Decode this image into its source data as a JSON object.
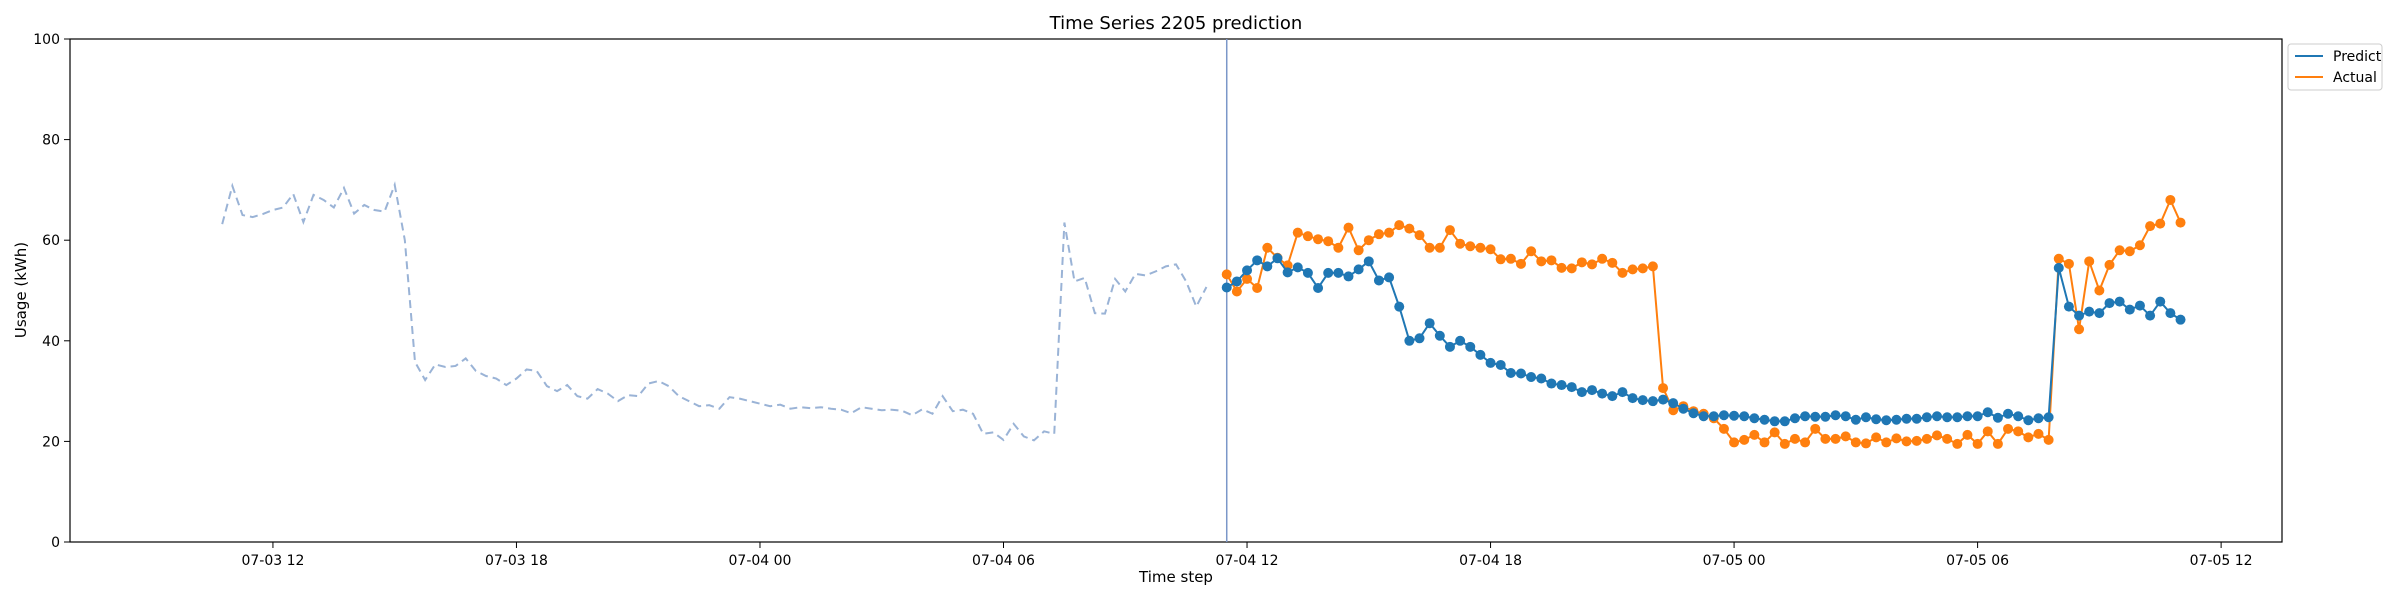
{
  "chart_data": {
    "type": "line",
    "title": "Time Series 2205 prediction",
    "xlabel": "Time step",
    "ylabel": "Usage (kWh)",
    "ylim": [
      0,
      100
    ],
    "yticks": [
      0,
      20,
      40,
      60,
      80,
      100
    ],
    "x_axis": {
      "kind": "datetime",
      "start": "2024-07-03 07:00",
      "end": "2024-07-05 13:30",
      "ticks": [
        {
          "t": "2024-07-03 12:00",
          "label": "07-03 12"
        },
        {
          "t": "2024-07-03 18:00",
          "label": "07-03 18"
        },
        {
          "t": "2024-07-04 00:00",
          "label": "07-04 00"
        },
        {
          "t": "2024-07-04 06:00",
          "label": "07-04 06"
        },
        {
          "t": "2024-07-04 12:00",
          "label": "07-04 12"
        },
        {
          "t": "2024-07-04 18:00",
          "label": "07-04 18"
        },
        {
          "t": "2024-07-05 00:00",
          "label": "07-05 00"
        },
        {
          "t": "2024-07-05 06:00",
          "label": "07-05 06"
        },
        {
          "t": "2024-07-05 12:00",
          "label": "07-05 12"
        }
      ]
    },
    "split_line_time": "2024-07-04 11:30",
    "history_series": {
      "start": "2024-07-03 10:45",
      "interval_minutes": 15,
      "color": "#9ab3d6",
      "values": [
        63.2,
        70.8,
        65,
        64.6,
        65.2,
        66,
        66.5,
        69.2,
        63.6,
        69,
        68,
        66.5,
        70.4,
        65.3,
        67,
        66,
        65.7,
        71,
        60,
        35.8,
        32.2,
        35.3,
        34.8,
        35,
        36.5,
        34,
        33,
        32.5,
        31.2,
        32.5,
        34.3,
        34,
        31,
        30,
        31.2,
        29,
        28.5,
        30.4,
        29.5,
        28,
        29.2,
        29,
        31.5,
        32,
        31,
        29,
        28,
        27,
        27.2,
        26.5,
        28.8,
        28.5,
        28,
        27.5,
        27,
        27.3,
        26.5,
        26.8,
        26.6,
        26.8,
        26.5,
        26.3,
        25.6,
        26.8,
        26.5,
        26.2,
        26.3,
        26.1,
        25.2,
        26.4,
        25.5,
        29,
        26,
        26.3,
        25.5,
        21.5,
        21.8,
        20.3,
        23.5,
        21,
        20.2,
        22,
        21.5,
        63.5,
        51.8,
        52.5,
        45.5,
        45.4,
        52.3,
        49.8,
        53.3,
        53,
        53.8,
        54.8,
        55.2,
        51.8,
        46.8,
        50.7
      ]
    },
    "forecast_start": "2024-07-04 11:30",
    "forecast_interval_minutes": 15,
    "series": [
      {
        "name": "Predict",
        "color": "#1f77b4",
        "values": [
          50.6,
          51.8,
          54,
          56,
          54.8,
          56.4,
          53.6,
          54.6,
          53.5,
          50.5,
          53.5,
          53.5,
          52.8,
          54.2,
          55.8,
          52,
          52.6,
          46.8,
          40,
          40.5,
          43.5,
          41,
          38.8,
          40,
          38.8,
          37.2,
          35.6,
          35.2,
          33.6,
          33.5,
          32.8,
          32.5,
          31.5,
          31.2,
          30.8,
          29.8,
          30.2,
          29.5,
          29,
          29.8,
          28.6,
          28.2,
          28,
          28.3,
          27.6,
          26.5,
          25.6,
          25,
          25,
          25.2,
          25.1,
          25,
          24.6,
          24.3,
          24,
          24,
          24.6,
          25,
          24.9,
          24.9,
          25.2,
          25,
          24.3,
          24.8,
          24.4,
          24.2,
          24.3,
          24.5,
          24.5,
          24.8,
          25,
          24.8,
          24.8,
          25,
          25,
          25.8,
          24.7,
          25.5,
          25,
          24.2,
          24.6,
          24.8,
          54.5,
          46.8,
          45,
          45.8,
          45.5,
          47.5,
          47.8,
          46.2,
          47,
          45,
          47.8,
          45.5,
          44.2
        ]
      },
      {
        "name": "Actual",
        "color": "#ff7f0e",
        "values": [
          53.2,
          49.8,
          52.3,
          50.5,
          58.5,
          56.5,
          55,
          61.5,
          60.8,
          60.2,
          59.8,
          58.5,
          62.5,
          58,
          60,
          61.2,
          61.5,
          63,
          62.3,
          61,
          58.5,
          58.5,
          62,
          59.3,
          58.8,
          58.5,
          58.2,
          56.2,
          56.3,
          55.3,
          57.8,
          55.8,
          56,
          54.5,
          54.4,
          55.6,
          55.2,
          56.3,
          55.5,
          53.5,
          54.2,
          54.4,
          54.8,
          30.6,
          26.2,
          27,
          26,
          25.5,
          24.6,
          22.5,
          19.8,
          20.3,
          21.3,
          19.8,
          21.8,
          19.5,
          20.5,
          19.8,
          22.5,
          20.5,
          20.5,
          21,
          19.8,
          19.6,
          20.8,
          19.8,
          20.6,
          20,
          20.1,
          20.5,
          21.2,
          20.5,
          19.5,
          21.3,
          19.5,
          22,
          19.5,
          22.5,
          22,
          20.8,
          21.5,
          20.3,
          56.3,
          55.3,
          42.3,
          55.8,
          50,
          55.1,
          58,
          57.8,
          59,
          62.8,
          63.3,
          68,
          63.5
        ]
      }
    ],
    "legend": {
      "position": "outside top-right",
      "entries": [
        "Predict",
        "Actual"
      ]
    }
  }
}
